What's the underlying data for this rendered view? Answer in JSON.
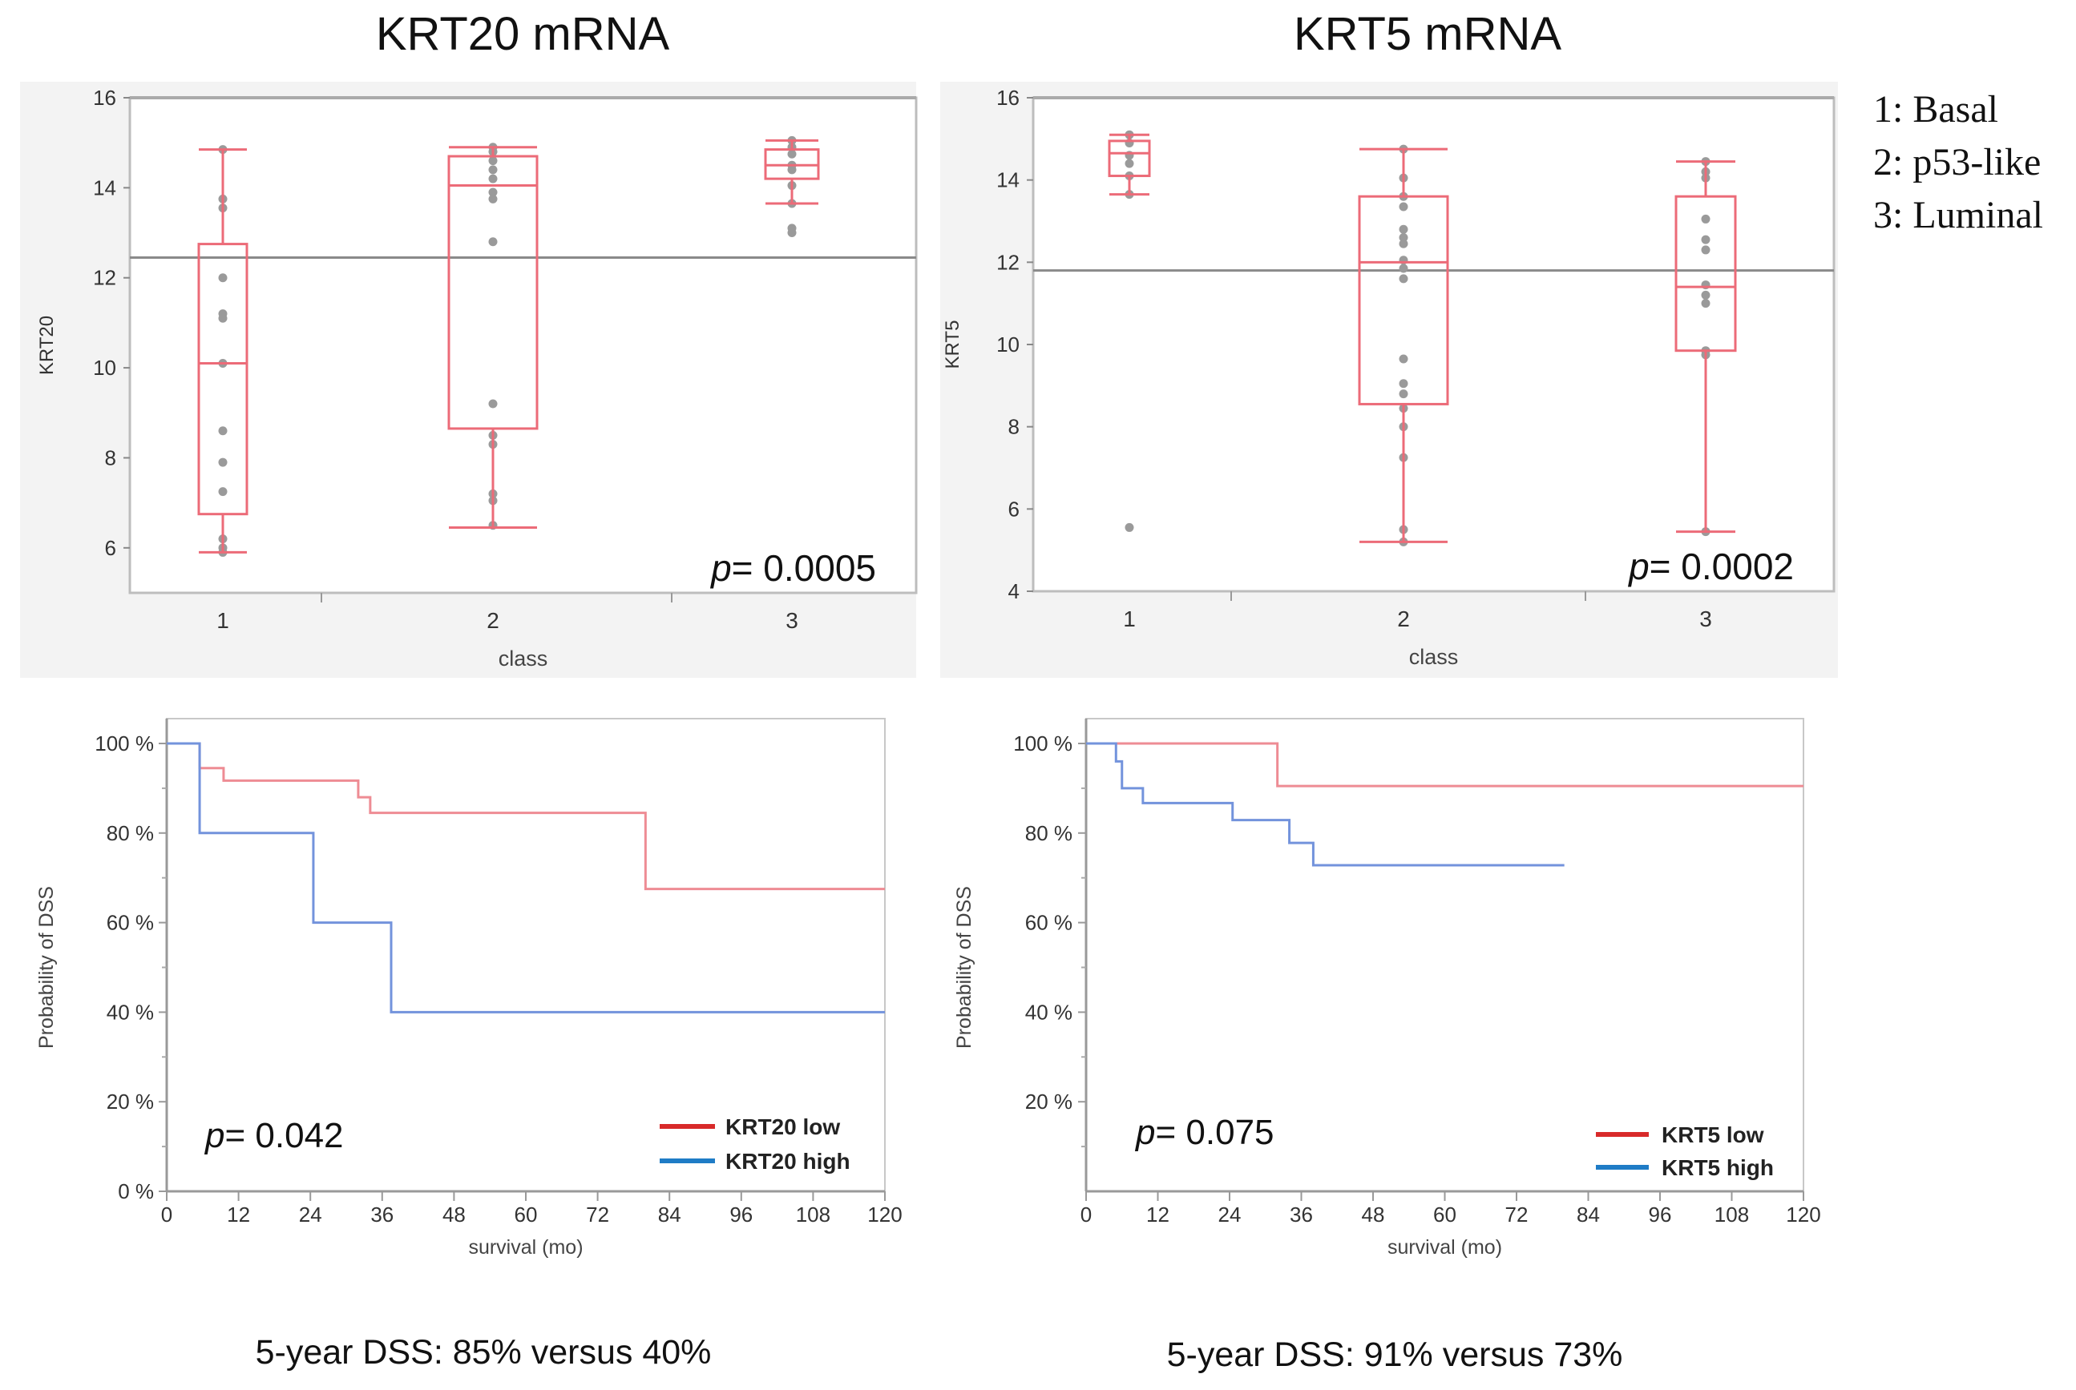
{
  "titles": [
    "KRT20 mRNA",
    "KRT5 mRNA"
  ],
  "class_legend": [
    "1: Basal",
    "2: p53-like",
    "3: Luminal"
  ],
  "captions": [
    "5-year DSS: 85% versus 40%",
    "5-year DSS: 91% versus 73%"
  ],
  "colors": {
    "box": "#ec6b78",
    "point": "#9a9a9a",
    "km_low": "#ee8c94",
    "km_high": "#7393dc",
    "legend_low": "#d82a2a",
    "legend_high": "#1f7cc6",
    "panel_bg": "#f3f3f3"
  },
  "chart_data": [
    {
      "type": "box",
      "title": "KRT20 mRNA",
      "xlabel": "class",
      "ylabel": "KRT20",
      "ylim": [
        5,
        16
      ],
      "y_ticks": [
        6,
        8,
        10,
        12,
        14,
        16
      ],
      "categories": [
        "1",
        "2",
        "3"
      ],
      "grand_mean": 12.45,
      "p_prefix": "p",
      "p_value": "= 0.0005",
      "boxes": [
        {
          "whisker_low": 5.9,
          "q1": 6.75,
          "median": 10.1,
          "q3": 12.75,
          "whisker_high": 14.85,
          "points": [
            14.85,
            13.75,
            13.55,
            12.0,
            11.2,
            11.1,
            10.1,
            8.6,
            7.9,
            7.25,
            6.2,
            6.0,
            5.9
          ]
        },
        {
          "whisker_low": 6.45,
          "q1": 8.65,
          "median": 14.05,
          "q3": 14.7,
          "whisker_high": 14.9,
          "points": [
            14.9,
            14.8,
            14.6,
            14.4,
            14.2,
            13.9,
            13.75,
            12.8,
            9.2,
            8.5,
            8.3,
            7.2,
            7.05,
            6.5
          ]
        },
        {
          "whisker_low": 13.65,
          "q1": 14.2,
          "median": 14.5,
          "q3": 14.85,
          "whisker_high": 15.05,
          "points": [
            15.05,
            14.9,
            14.75,
            14.5,
            14.4,
            14.05,
            13.65,
            13.1,
            13.0
          ]
        }
      ]
    },
    {
      "type": "box",
      "title": "KRT5 mRNA",
      "xlabel": "class",
      "ylabel": "KRT5",
      "ylim": [
        4,
        16
      ],
      "y_ticks": [
        4,
        6,
        8,
        10,
        12,
        14,
        16
      ],
      "categories": [
        "1",
        "2",
        "3"
      ],
      "grand_mean": 11.8,
      "p_prefix": "p",
      "p_value": "= 0.0002",
      "boxes": [
        {
          "whisker_low": 13.65,
          "q1": 14.1,
          "median": 14.65,
          "q3": 14.95,
          "whisker_high": 15.1,
          "points": [
            15.1,
            14.9,
            14.6,
            14.4,
            14.1,
            13.65,
            5.55
          ]
        },
        {
          "whisker_low": 5.2,
          "q1": 8.55,
          "median": 12.0,
          "q3": 13.6,
          "whisker_high": 14.75,
          "points": [
            14.75,
            14.05,
            13.6,
            13.35,
            12.8,
            12.6,
            12.45,
            12.05,
            11.85,
            11.6,
            9.65,
            9.05,
            8.8,
            8.45,
            8.0,
            7.25,
            5.5,
            5.2
          ]
        },
        {
          "whisker_low": 5.45,
          "q1": 9.85,
          "median": 11.4,
          "q3": 13.6,
          "whisker_high": 14.45,
          "points": [
            14.45,
            14.2,
            14.05,
            13.05,
            12.55,
            12.3,
            11.45,
            11.2,
            11.0,
            9.85,
            9.75,
            5.45
          ]
        }
      ]
    },
    {
      "type": "line",
      "subtype": "kaplan-meier",
      "xlabel": "survival (mo)",
      "ylabel": "Probability of DSS",
      "xlim": [
        0,
        120
      ],
      "ylim": [
        0,
        100
      ],
      "x_ticks": [
        "0",
        "12",
        "24",
        "36",
        "48",
        "60",
        "72",
        "84",
        "96",
        "108",
        "120"
      ],
      "y_ticks": [
        {
          "v": 0,
          "label": "0 %"
        },
        {
          "v": 20,
          "label": "20 %"
        },
        {
          "v": 40,
          "label": "40 %"
        },
        {
          "v": 60,
          "label": "60 %"
        },
        {
          "v": 80,
          "label": "80 %"
        },
        {
          "v": 100,
          "label": "100 %"
        }
      ],
      "p_prefix": "p",
      "p_value": "= 0.042",
      "legend_position": "bottom-right",
      "series": [
        {
          "name": "KRT20 low",
          "key": "low",
          "steps": [
            [
              0,
              100
            ],
            [
              5.5,
              94.5
            ],
            [
              9.5,
              91.7
            ],
            [
              32,
              88
            ],
            [
              34,
              84.5
            ],
            [
              80,
              67.5
            ],
            [
              120,
              67.5
            ]
          ]
        },
        {
          "name": "KRT20 high",
          "key": "high",
          "steps": [
            [
              0,
              100
            ],
            [
              5.5,
              80
            ],
            [
              24.5,
              60
            ],
            [
              37.5,
              40
            ],
            [
              120,
              40
            ]
          ]
        }
      ]
    },
    {
      "type": "line",
      "subtype": "kaplan-meier",
      "xlabel": "survival (mo)",
      "ylabel": "Probability of DSS",
      "xlim": [
        0,
        120
      ],
      "ylim": [
        0,
        100
      ],
      "x_ticks": [
        "0",
        "12",
        "24",
        "36",
        "48",
        "60",
        "72",
        "84",
        "96",
        "108",
        "120"
      ],
      "y_ticks": [
        {
          "v": 20,
          "label": "20 %"
        },
        {
          "v": 40,
          "label": "40 %"
        },
        {
          "v": 60,
          "label": "60 %"
        },
        {
          "v": 80,
          "label": "80 %"
        },
        {
          "v": 100,
          "label": "100 %"
        }
      ],
      "p_prefix": "p",
      "p_value": "= 0.075",
      "legend_position": "bottom-right",
      "series": [
        {
          "name": "KRT5 low",
          "key": "low",
          "steps": [
            [
              0,
              100
            ],
            [
              32,
              90.5
            ],
            [
              120,
              90.5
            ]
          ]
        },
        {
          "name": "KRT5 high",
          "key": "high",
          "steps": [
            [
              0,
              100
            ],
            [
              5,
              96
            ],
            [
              6,
              90
            ],
            [
              9.5,
              86.7
            ],
            [
              24.5,
              82.9
            ],
            [
              34,
              77.8
            ],
            [
              38,
              72.8
            ],
            [
              80,
              72.8
            ]
          ]
        }
      ]
    }
  ]
}
